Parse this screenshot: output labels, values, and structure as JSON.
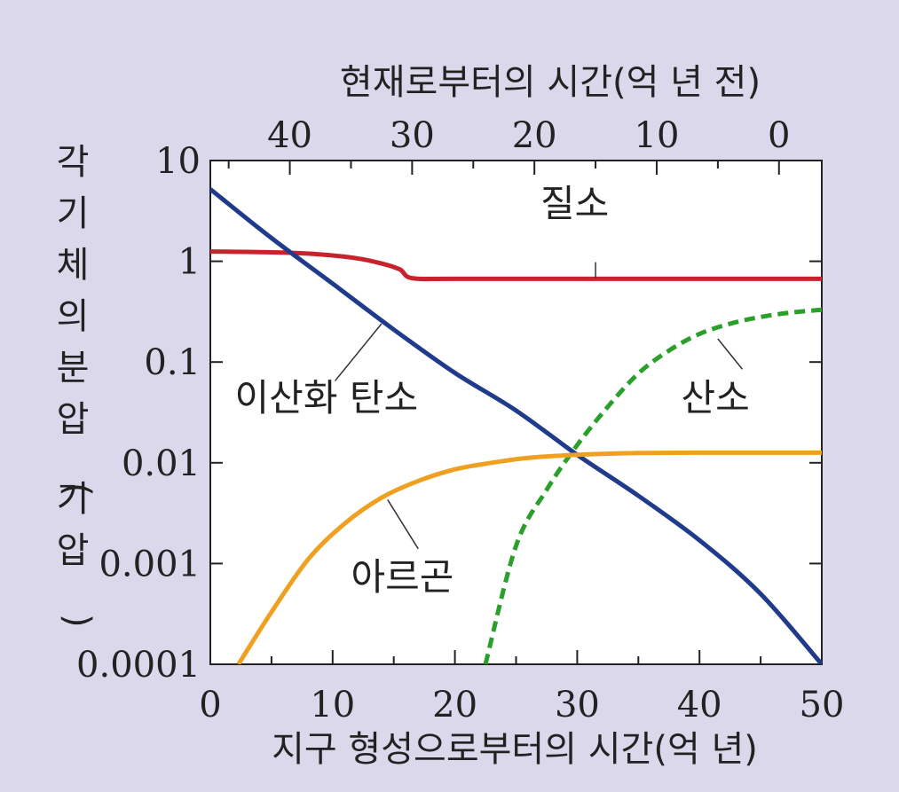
{
  "chart_data": {
    "type": "line",
    "xlabel": "지구 형성으로부터의 시간(억 년)",
    "x2label": "현재로부터의 시간(억 년 전)",
    "ylabel": "각 기체의 분압(기압)",
    "xlim": [
      0,
      50
    ],
    "ylim": [
      0.0001,
      10
    ],
    "yscale": "log",
    "xticks": [
      0,
      10,
      20,
      30,
      40,
      50
    ],
    "x2ticks": [
      {
        "label": "40",
        "x": 6.5
      },
      {
        "label": "30",
        "x": 16.5
      },
      {
        "label": "20",
        "x": 26.5
      },
      {
        "label": "10",
        "x": 36.5
      },
      {
        "label": "0",
        "x": 46.5
      }
    ],
    "yticks": [
      {
        "value": 10,
        "label": "10"
      },
      {
        "value": 1,
        "label": "1"
      },
      {
        "value": 0.1,
        "label": "0.1"
      },
      {
        "value": 0.01,
        "label": "0.01"
      },
      {
        "value": 0.001,
        "label": "0.001"
      },
      {
        "value": 0.0001,
        "label": "0.0001"
      }
    ],
    "grid": false,
    "background_color": "#dcd8ec",
    "plot_background": "#ffffff",
    "series": [
      {
        "name": "질소",
        "color": "#c8232c",
        "style": "solid",
        "points": [
          [
            0,
            1.25
          ],
          [
            3,
            1.24
          ],
          [
            6,
            1.22
          ],
          [
            9,
            1.17
          ],
          [
            12,
            1.07
          ],
          [
            14,
            0.95
          ],
          [
            15.5,
            0.83
          ],
          [
            16.5,
            0.68
          ],
          [
            20,
            0.67
          ],
          [
            30,
            0.67
          ],
          [
            40,
            0.67
          ],
          [
            50,
            0.67
          ]
        ],
        "label_pos": [
          27,
          2.8
        ],
        "leader": [
          [
            31.5,
            0.68
          ],
          [
            31.5,
            0.98
          ]
        ]
      },
      {
        "name": "이산화 탄소",
        "color": "#203a8c",
        "style": "solid",
        "points": [
          [
            0,
            5.2
          ],
          [
            5,
            1.7
          ],
          [
            10,
            0.6
          ],
          [
            15,
            0.21
          ],
          [
            20,
            0.078
          ],
          [
            25,
            0.033
          ],
          [
            30,
            0.012
          ],
          [
            35,
            0.0047
          ],
          [
            40,
            0.0017
          ],
          [
            45,
            0.0005
          ],
          [
            50,
            0.0001
          ]
        ],
        "label_pos": [
          2,
          0.033
        ],
        "leader": [
          [
            14,
            0.24
          ],
          [
            10.2,
            0.065
          ]
        ]
      },
      {
        "name": "산소",
        "color": "#2aa02a",
        "style": "dashed",
        "points": [
          [
            22.5,
            0.0001
          ],
          [
            25,
            0.0015
          ],
          [
            27.5,
            0.0054
          ],
          [
            30,
            0.015
          ],
          [
            32.5,
            0.036
          ],
          [
            35,
            0.077
          ],
          [
            37.5,
            0.13
          ],
          [
            40,
            0.19
          ],
          [
            42.5,
            0.24
          ],
          [
            45,
            0.28
          ],
          [
            47.5,
            0.31
          ],
          [
            50,
            0.33
          ]
        ],
        "label_pos": [
          38.5,
          0.033
        ],
        "leader": [
          [
            41.5,
            0.17
          ],
          [
            43.5,
            0.085
          ]
        ]
      },
      {
        "name": "아르곤",
        "color": "#f0a020",
        "style": "solid",
        "points": [
          [
            2.3,
            0.0001
          ],
          [
            5,
            0.00033
          ],
          [
            8,
            0.0011
          ],
          [
            11,
            0.0025
          ],
          [
            14,
            0.0045
          ],
          [
            17,
            0.0066
          ],
          [
            20,
            0.0086
          ],
          [
            23,
            0.01
          ],
          [
            26,
            0.0112
          ],
          [
            30,
            0.012
          ],
          [
            35,
            0.0125
          ],
          [
            40,
            0.0126
          ],
          [
            50,
            0.0126
          ]
        ],
        "label_pos": [
          11.5,
          0.00055
        ],
        "leader": [
          [
            14.5,
            0.0043
          ],
          [
            17,
            0.0014
          ]
        ]
      }
    ]
  }
}
